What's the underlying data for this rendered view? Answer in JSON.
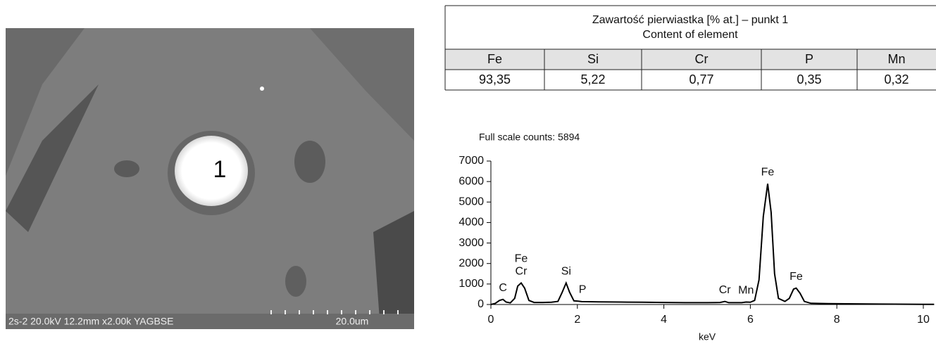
{
  "image": {
    "marker": "1",
    "info": "2s-2 20.0kV 12.2mm x2.00k YAGBSE",
    "scale": "20.0um"
  },
  "table": {
    "title": [
      "Zawartość pierwiastka [% at.] – punkt 1",
      "Content of element"
    ],
    "header": [
      "Fe",
      "Si",
      "Cr",
      "P",
      "Mn"
    ],
    "rows": [
      [
        "93,35",
        "5,22",
        "0,77",
        "0,35",
        "0,32"
      ]
    ]
  },
  "chart_data": {
    "type": "line",
    "subtitle": "Full scale counts: 5894",
    "x_label": "keV",
    "color": "#000000",
    "x": [
      0,
      0.1,
      0.2,
      0.28,
      0.35,
      0.45,
      0.55,
      0.62,
      0.7,
      0.78,
      0.88,
      1.0,
      1.2,
      1.4,
      1.55,
      1.65,
      1.74,
      1.82,
      1.92,
      2.02,
      2.1,
      2.5,
      3,
      3.5,
      4,
      4.5,
      5,
      5.3,
      5.41,
      5.5,
      5.8,
      5.9,
      6.0,
      6.1,
      6.2,
      6.3,
      6.4,
      6.48,
      6.56,
      6.65,
      6.8,
      6.9,
      7.0,
      7.06,
      7.15,
      7.25,
      7.4,
      7.8,
      8.5,
      9,
      10,
      10.25
    ],
    "values": [
      0,
      50,
      200,
      250,
      120,
      80,
      300,
      900,
      1050,
      800,
      200,
      100,
      100,
      110,
      150,
      600,
      1050,
      600,
      180,
      160,
      140,
      130,
      120,
      110,
      100,
      90,
      90,
      100,
      150,
      90,
      90,
      120,
      110,
      200,
      1200,
      4300,
      5894,
      4500,
      1500,
      300,
      150,
      300,
      750,
      800,
      550,
      150,
      60,
      40,
      30,
      20,
      10,
      10
    ],
    "xlim": [
      0,
      10.25
    ],
    "xticks": [
      0,
      2,
      4,
      6,
      8,
      10
    ],
    "ylim": [
      0,
      7000
    ],
    "yticks": [
      0,
      1000,
      2000,
      3000,
      4000,
      5000,
      6000,
      7000
    ],
    "annotations": [
      {
        "text": "C",
        "x": 0.28
      },
      {
        "text": "Cr",
        "x": 0.7
      },
      {
        "text": "Fe",
        "x": 0.7
      },
      {
        "text": "Si",
        "x": 1.74
      },
      {
        "text": "P",
        "x": 2.02
      },
      {
        "text": "Cr",
        "x": 5.41
      },
      {
        "text": "Mn",
        "x": 5.9
      },
      {
        "text": "Fe",
        "x": 6.4
      },
      {
        "text": "Fe",
        "x": 7.06
      }
    ]
  }
}
